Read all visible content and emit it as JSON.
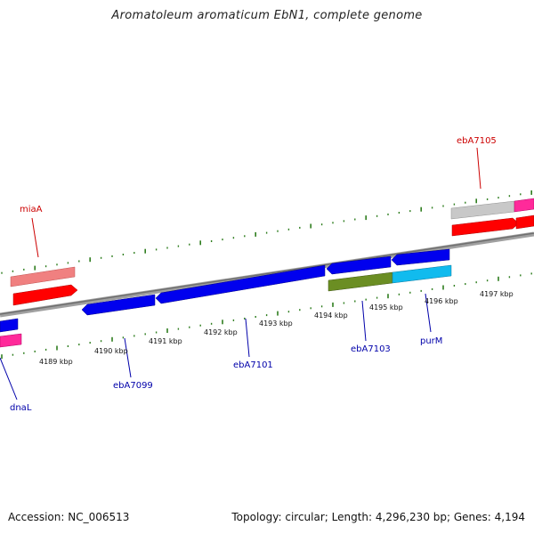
{
  "title": "Aromatoleum aromaticum EbN1, complete genome",
  "footer": {
    "accession": "Accession: NC_006513",
    "summary": "Topology: circular; Length: 4,296,230 bp; Genes: 4,194"
  },
  "colors": {
    "forward_label": "#cc0000",
    "reverse_label": "#0000aa",
    "tick": "#2e7d1e",
    "backbone": "#808080",
    "red_gene": "#ff0000",
    "pink_gene": "#f08080",
    "magenta_gene": "#ff2a9a",
    "gray_gene": "#c8c8c8",
    "blue_gene": "#0000ee",
    "olive_gene": "#6b8e23",
    "cyan_gene": "#11bbee"
  },
  "scale": {
    "unit": "kbp",
    "labels": [
      "4189 kbp",
      "4190 kbp",
      "4191 kbp",
      "4192 kbp",
      "4193 kbp",
      "4194 kbp",
      "4195 kbp",
      "4196 kbp",
      "4197 kbp"
    ]
  },
  "gene_labels": {
    "forward": [
      "miaA",
      "ebA7105"
    ],
    "reverse": [
      "dnaL",
      "ebA7099",
      "ebA7101",
      "ebA7103",
      "purM"
    ]
  }
}
